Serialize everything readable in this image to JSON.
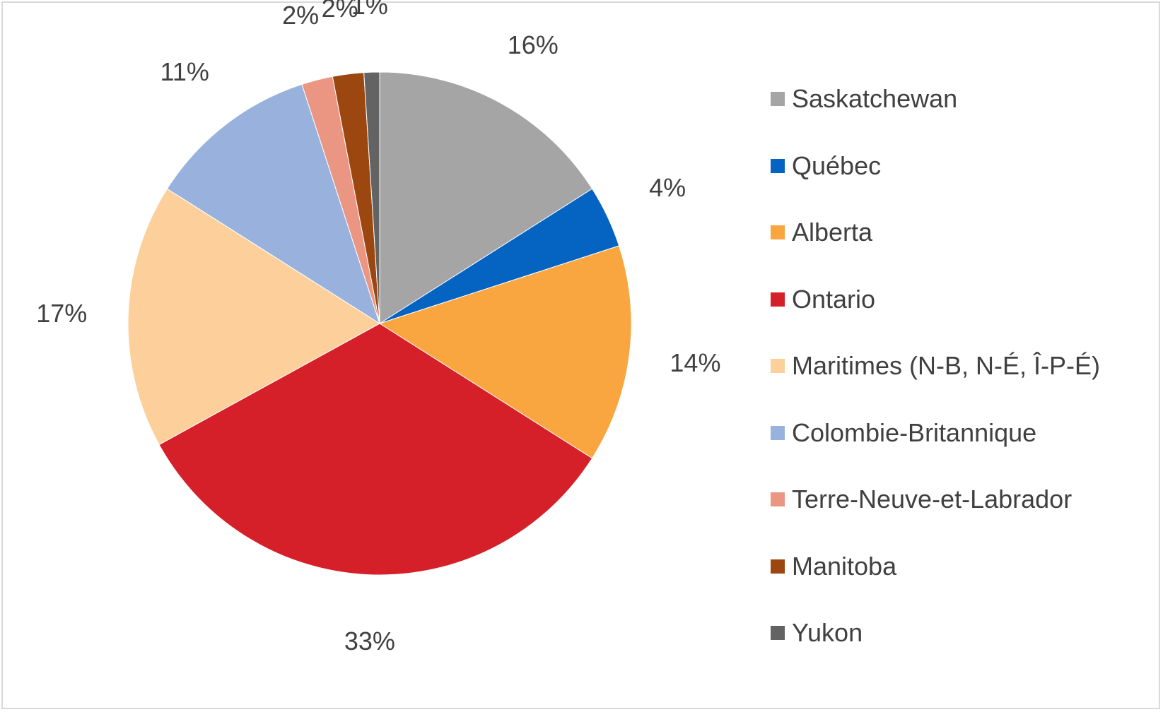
{
  "chart_data": {
    "type": "pie",
    "title": "",
    "legend_position": "right",
    "slices": [
      {
        "label": "Saskatchewan",
        "value": 16,
        "display": "16%",
        "color": "#a5a5a5"
      },
      {
        "label": "Québec",
        "value": 4,
        "display": "4%",
        "color": "#0563c1"
      },
      {
        "label": "Alberta",
        "value": 14,
        "display": "14%",
        "color": "#f9a640"
      },
      {
        "label": "Ontario",
        "value": 33,
        "display": "33%",
        "color": "#d62029"
      },
      {
        "label": "Maritimes (N-B, N-É, Î-P-É)",
        "value": 17,
        "display": "17%",
        "color": "#fdcf9b"
      },
      {
        "label": "Colombie-Britannique",
        "value": 11,
        "display": "11%",
        "color": "#98b2dd"
      },
      {
        "label": "Terre-Neuve-et-Labrador",
        "value": 2,
        "display": "2%",
        "color": "#eb9682"
      },
      {
        "label": "Manitoba",
        "value": 2,
        "display": "2%",
        "color": "#9c4610"
      },
      {
        "label": "Yukon",
        "value": 1,
        "display": "1%",
        "color": "#636363"
      }
    ]
  }
}
